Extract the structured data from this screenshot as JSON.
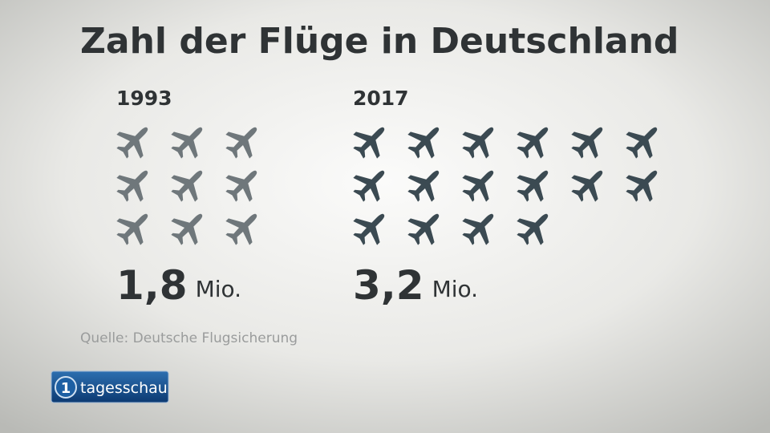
{
  "chart_data": {
    "type": "pictogram",
    "title": "Zahl der Flüge in Deutschland",
    "categories": [
      "1993",
      "2017"
    ],
    "values": [
      1.8,
      3.2
    ],
    "value_labels": [
      "1,8",
      "3,2"
    ],
    "unit": "Mio.",
    "icons": [
      9,
      16
    ],
    "colors": [
      "#6f777b",
      "#3b4a52"
    ],
    "source": "Quelle: Deutsche Flugsicherung"
  },
  "logo": {
    "text": "tagesschau"
  }
}
